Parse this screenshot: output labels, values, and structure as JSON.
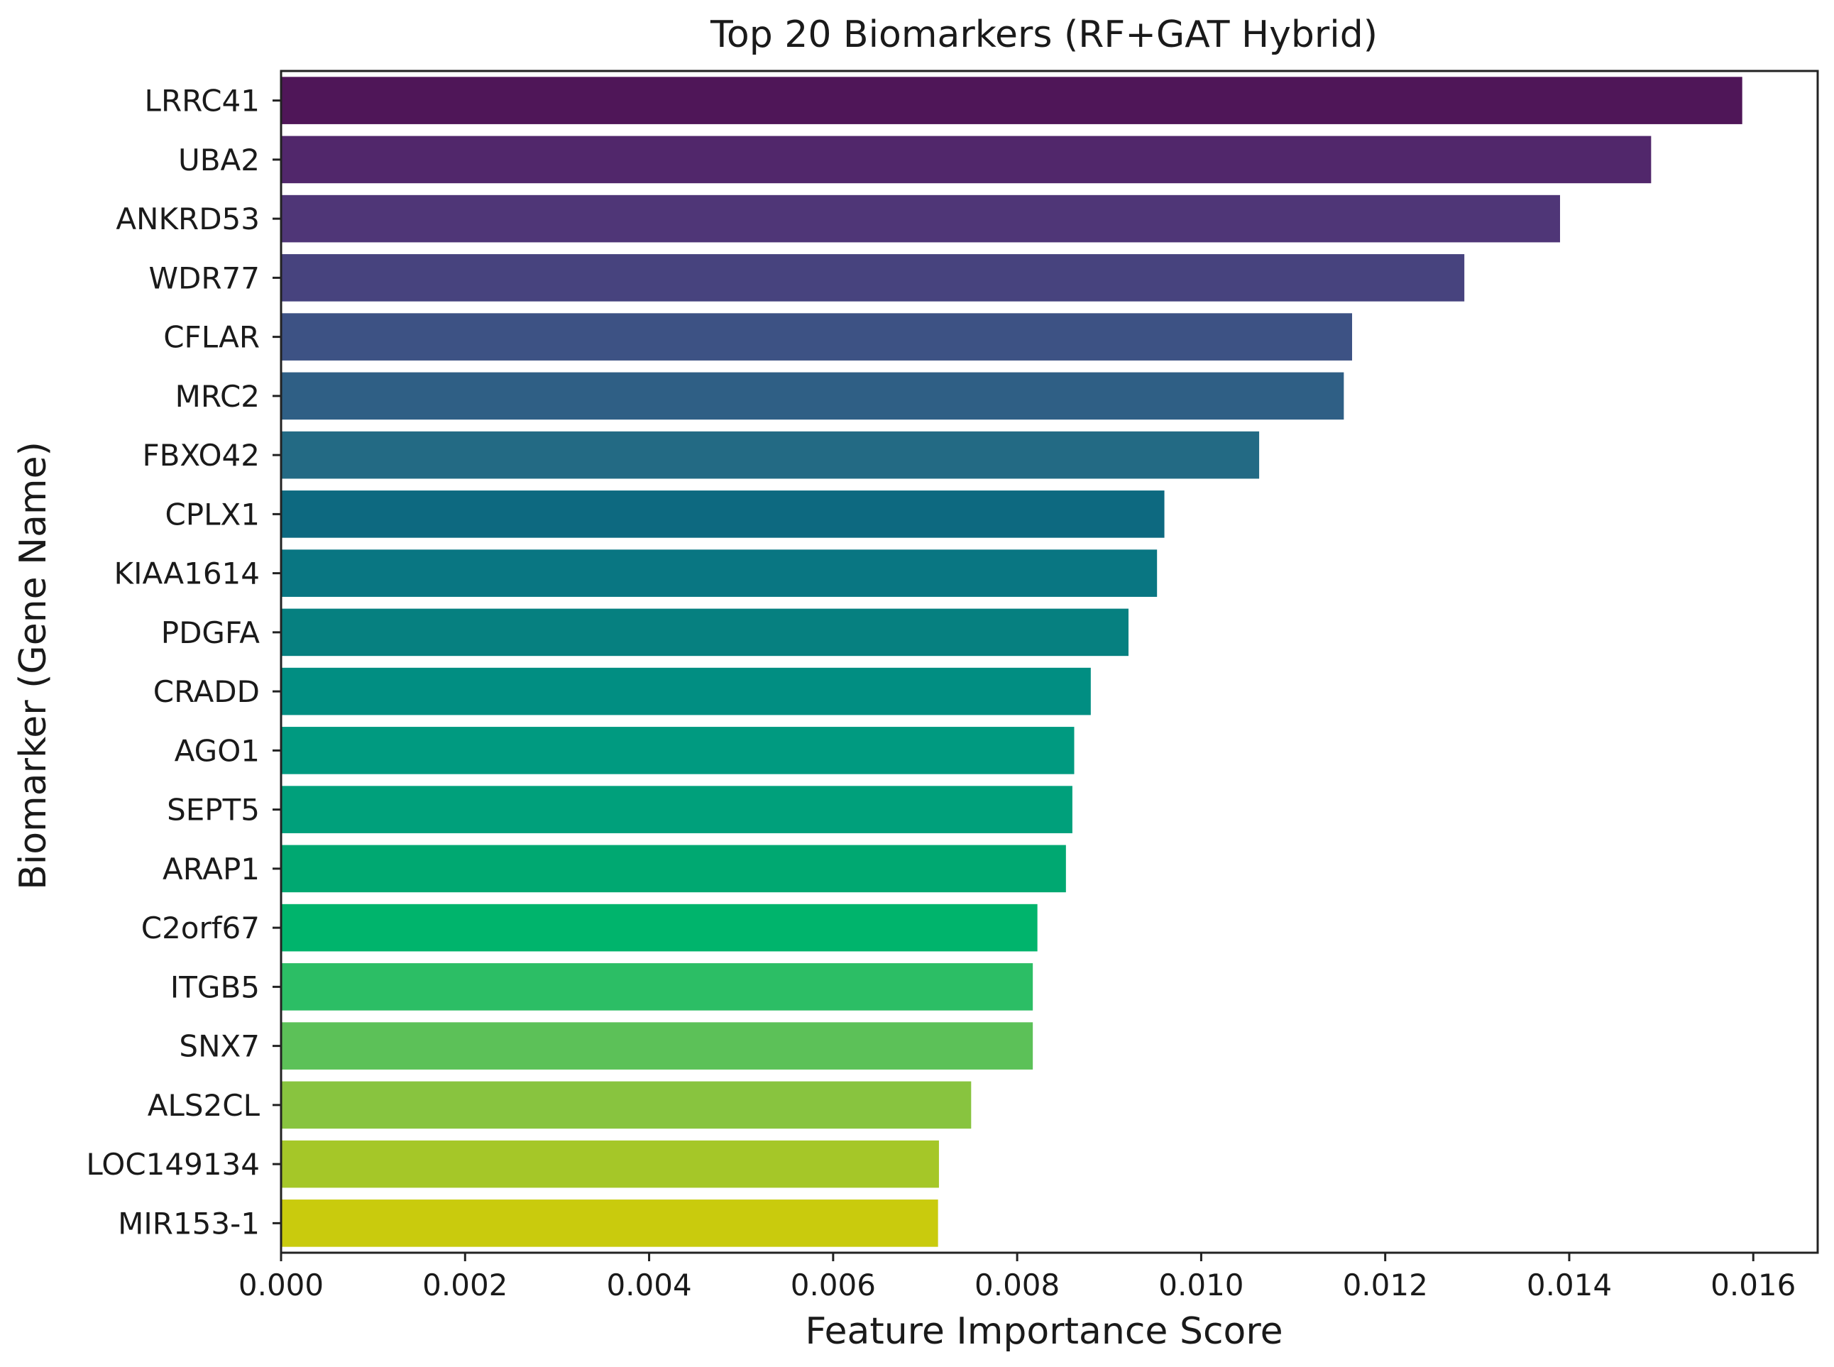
{
  "chart_data": {
    "type": "bar",
    "orientation": "horizontal",
    "title": "Top 20 Biomarkers (RF+GAT Hybrid)",
    "xlabel": "Feature Importance Score",
    "ylabel": "Biomarker (Gene Name)",
    "xlim": [
      0,
      0.0167
    ],
    "xticks": [
      "0.000",
      "0.002",
      "0.004",
      "0.006",
      "0.008",
      "0.010",
      "0.012",
      "0.014",
      "0.016"
    ],
    "grid": false,
    "colormap": "viridis",
    "categories": [
      "LRRC41",
      "UBA2",
      "ANKRD53",
      "WDR77",
      "CFLAR",
      "MRC2",
      "FBXO42",
      "CPLX1",
      "KIAA1614",
      "PDGFA",
      "CRADD",
      "AGO1",
      "SEPT5",
      "ARAP1",
      "C2orf67",
      "ITGB5",
      "SNX7",
      "ALS2CL",
      "LOC149134",
      "MIR153-1"
    ],
    "values": [
      0.01588,
      0.01489,
      0.0139,
      0.01286,
      0.01164,
      0.01155,
      0.01063,
      0.0096,
      0.00952,
      0.00921,
      0.0088,
      0.00862,
      0.0086,
      0.00853,
      0.00822,
      0.00817,
      0.00817,
      0.0075,
      0.00715,
      0.00714
    ],
    "colors": [
      "#4f1658",
      "#51276b",
      "#4f3677",
      "#47437e",
      "#3d5284",
      "#2f5f85",
      "#236a84",
      "#0d6980",
      "#097682",
      "#068080",
      "#018e82",
      "#009a80",
      "#00a07b",
      "#00a871",
      "#00b46c",
      "#2cbe65",
      "#5cc158",
      "#88c43f",
      "#a5c728",
      "#c9cb0d"
    ]
  }
}
